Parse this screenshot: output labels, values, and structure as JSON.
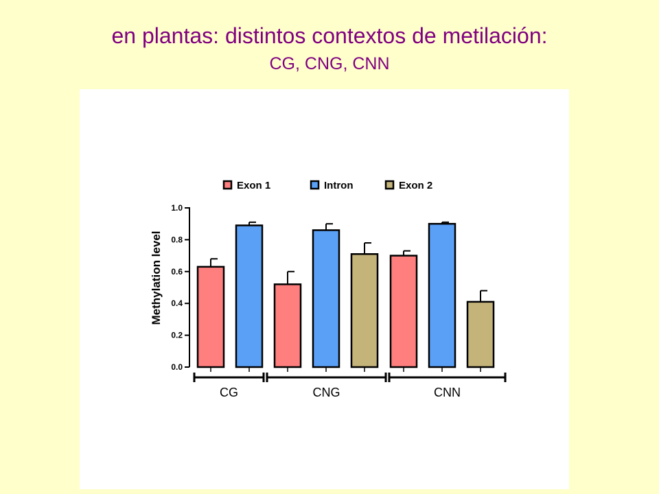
{
  "slide": {
    "title": "en plantas: distintos contextos de metilación:",
    "subtitle": "CG, CNG, CNN"
  },
  "chart_data": {
    "type": "bar",
    "categories": [
      "CG",
      "CNG",
      "CNN"
    ],
    "series": [
      {
        "name": "Exon 1",
        "color": "#ff7f7f",
        "values": [
          0.63,
          0.52,
          0.7
        ],
        "errors": [
          0.05,
          0.08,
          0.03
        ]
      },
      {
        "name": "Intron",
        "color": "#5aa0f7",
        "values": [
          0.89,
          0.86,
          0.9
        ],
        "errors": [
          0.02,
          0.04,
          0.01
        ]
      },
      {
        "name": "Exon 2",
        "color": "#c4b47a",
        "values": [
          null,
          0.71,
          0.41
        ],
        "errors": [
          null,
          0.07,
          0.07
        ]
      }
    ],
    "ylabel": "Methylation level",
    "xlabel": "",
    "ylim": [
      0,
      1.0
    ],
    "yticks": [
      "0.0",
      "0.2",
      "0.4",
      "0.6",
      "0.8",
      "1.0"
    ],
    "legend": "top",
    "grid": false
  }
}
